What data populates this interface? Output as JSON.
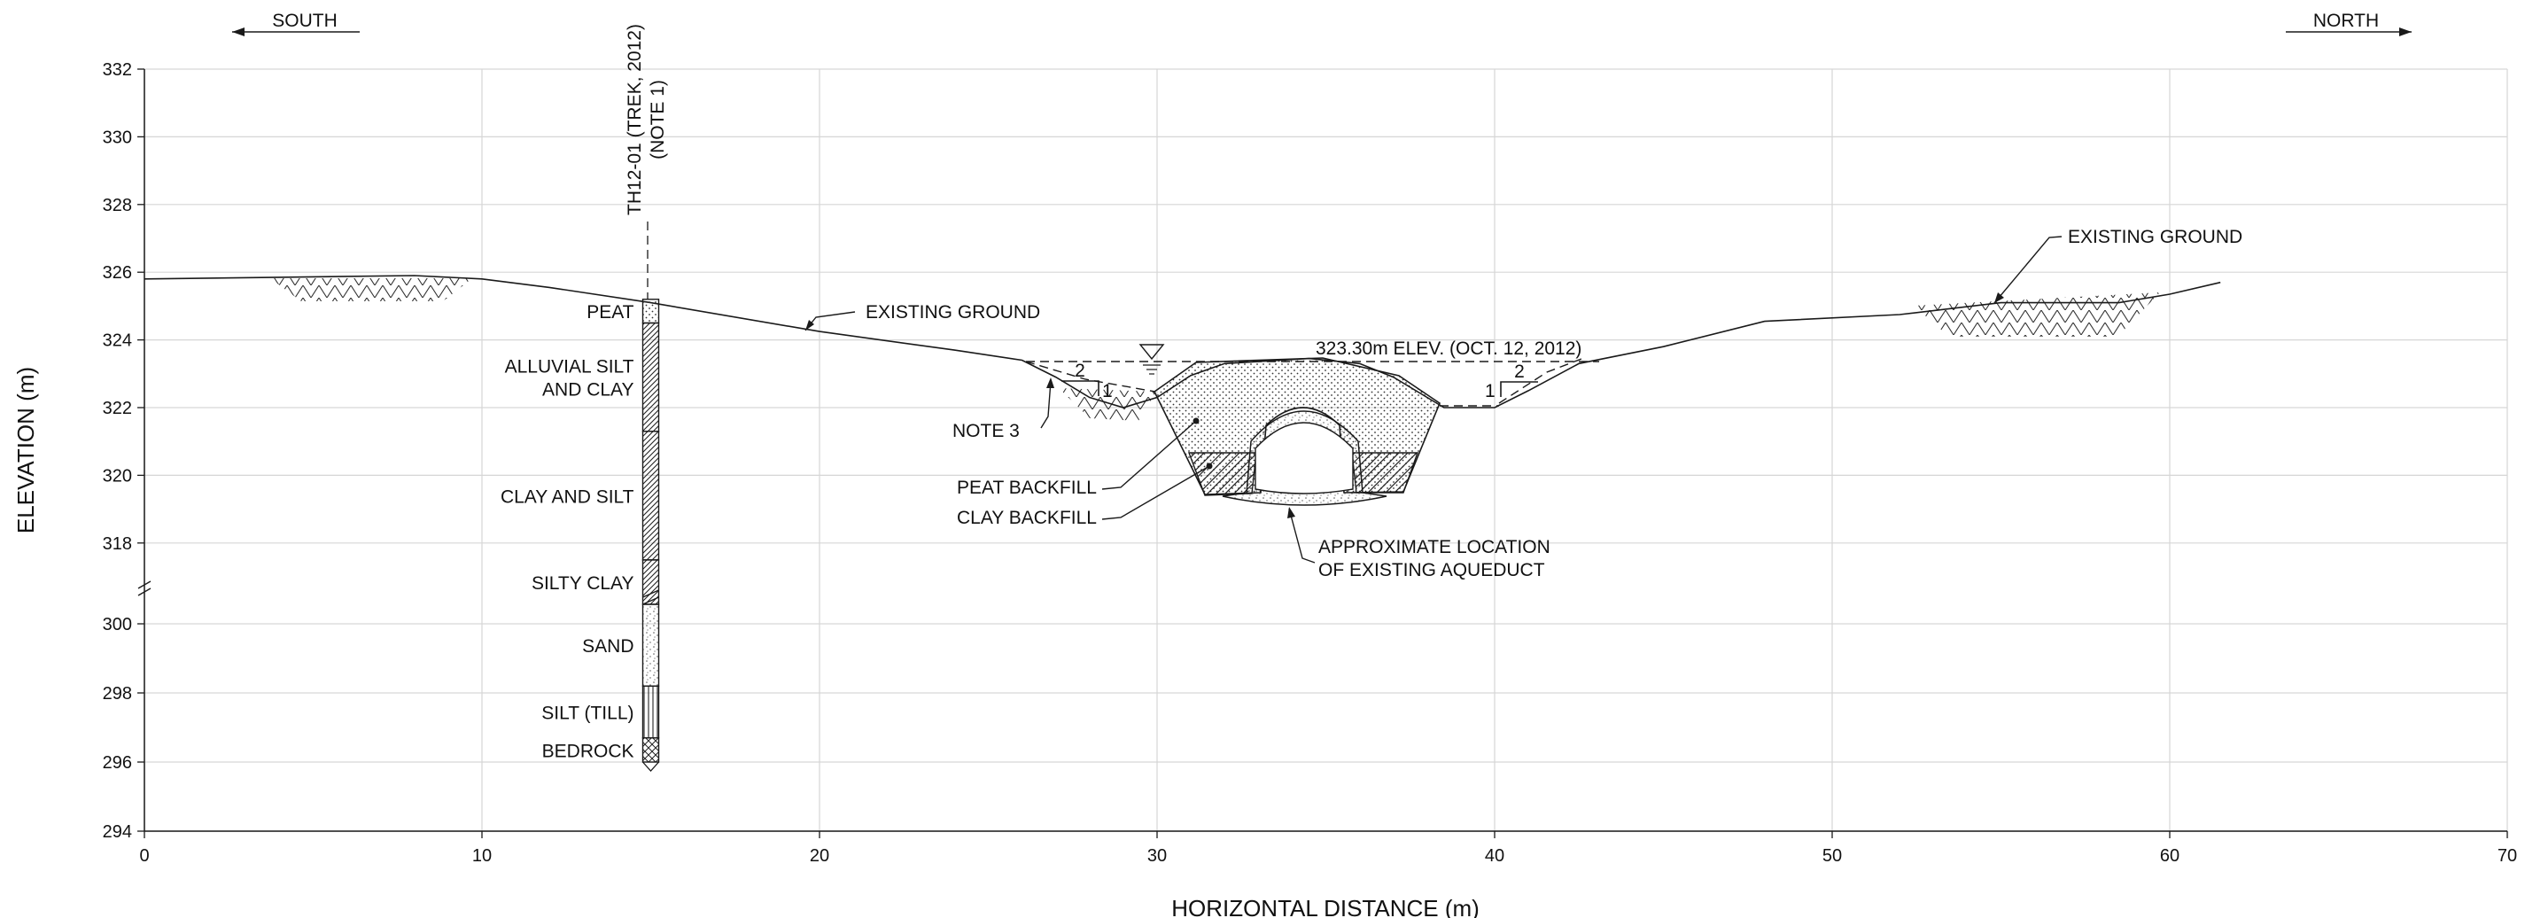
{
  "figure": {
    "orientation": {
      "south": "SOUTH",
      "north": "NORTH"
    },
    "borehole": {
      "id": "TH12-01 (TREK, 2012)",
      "note": "(NOTE 1)"
    },
    "layers": [
      {
        "name": "PEAT",
        "lines": [
          "PEAT"
        ],
        "top": 325.2,
        "bottom": 324.5,
        "pattern": "peat"
      },
      {
        "name": "ALLUVIAL SILT AND CLAY",
        "lines": [
          "ALLUVIAL SILT",
          "AND CLAY"
        ],
        "top": 324.5,
        "bottom": 321.3,
        "pattern": "clay"
      },
      {
        "name": "CLAY AND SILT",
        "lines": [
          "CLAY AND SILT"
        ],
        "top": 321.3,
        "bottom": 317.5,
        "pattern": "clay"
      },
      {
        "name": "SILTY CLAY",
        "lines": [
          "SILTY CLAY"
        ],
        "top": 317.5,
        "bottom": 300.8,
        "pattern": "clay"
      },
      {
        "name": "SAND",
        "lines": [
          "SAND"
        ],
        "top": 300.8,
        "bottom": 298.2,
        "pattern": "sand"
      },
      {
        "name": "SILT (TILL)",
        "lines": [
          "SILT (TILL)"
        ],
        "top": 298.2,
        "bottom": 296.7,
        "pattern": "till"
      },
      {
        "name": "BEDROCK",
        "lines": [
          "BEDROCK"
        ],
        "top": 296.7,
        "bottom": 296.0,
        "pattern": "bedrock"
      }
    ],
    "annotations": {
      "existing_ground_1": "EXISTING GROUND",
      "existing_ground_2": "EXISTING GROUND",
      "water_level": "323.30m ELEV. (OCT. 12, 2012)",
      "note3": "NOTE 3",
      "peat_backfill": "PEAT BACKFILL",
      "clay_backfill": "CLAY BACKFILL",
      "aqueduct_line1": "APPROXIMATE LOCATION",
      "aqueduct_line2": "OF EXISTING AQUEDUCT",
      "slope_left_h": "2",
      "slope_left_v": "1",
      "slope_right_h": "2",
      "slope_right_v": "1"
    }
  },
  "chart_data": {
    "type": "cross-section",
    "xlabel": "HORIZONTAL DISTANCE (m)",
    "ylabel": "ELEVATION (m)",
    "xlim": [
      0,
      70
    ],
    "x_ticks": [
      0,
      10,
      20,
      30,
      40,
      50,
      60,
      70
    ],
    "y_ticks_upper": [
      332,
      330,
      328,
      326,
      324,
      322,
      320,
      318
    ],
    "y_ticks_lower": [
      300,
      298,
      296,
      294
    ],
    "grid": true,
    "water_elevation": 323.3,
    "borehole_x": 15,
    "ground_profile": [
      [
        0,
        325.8
      ],
      [
        4,
        325.85
      ],
      [
        8,
        325.9
      ],
      [
        10,
        325.8
      ],
      [
        12,
        325.55
      ],
      [
        15,
        325.1
      ],
      [
        20,
        324.25
      ],
      [
        24,
        323.7
      ],
      [
        26,
        323.4
      ],
      [
        27,
        322.9
      ],
      [
        28,
        322.3
      ],
      [
        29,
        322.0
      ],
      [
        30,
        322.3
      ],
      [
        31,
        322.95
      ],
      [
        32,
        323.3
      ],
      [
        34.5,
        323.45
      ],
      [
        36,
        323.3
      ],
      [
        37,
        322.9
      ],
      [
        38,
        322.3
      ],
      [
        38.5,
        322.0
      ],
      [
        40,
        322.0
      ],
      [
        41,
        322.5
      ],
      [
        42.5,
        323.3
      ],
      [
        45,
        323.8
      ],
      [
        48,
        324.55
      ],
      [
        52,
        324.75
      ],
      [
        55,
        325.1
      ],
      [
        58.5,
        325.1
      ],
      [
        60,
        325.35
      ],
      [
        61.5,
        325.7
      ]
    ]
  }
}
